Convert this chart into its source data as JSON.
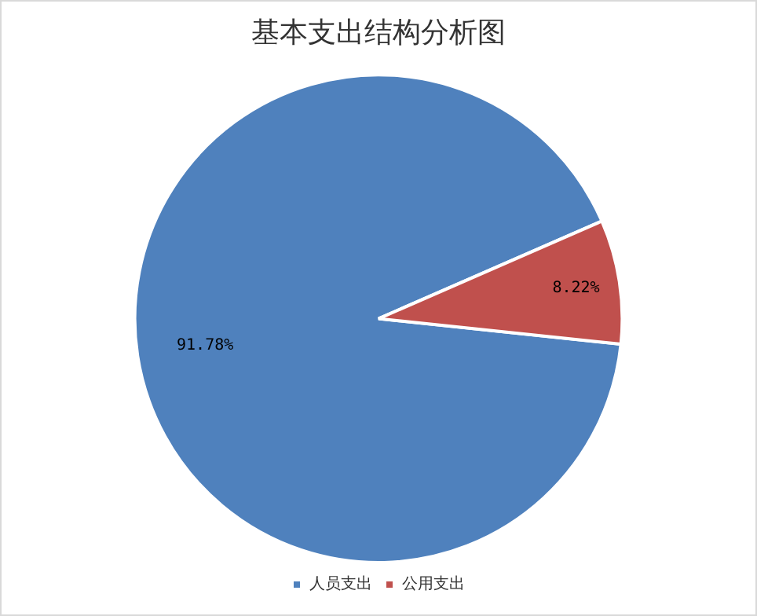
{
  "chart_data": {
    "type": "pie",
    "title": "基本支出结构分析图",
    "categories": [
      "人员支出",
      "公用支出"
    ],
    "values": [
      91.78,
      8.22
    ],
    "colors": [
      "#4f81bd",
      "#c0504d"
    ],
    "value_labels": [
      "91.78%",
      "8.22%"
    ],
    "legend": "bottom"
  }
}
